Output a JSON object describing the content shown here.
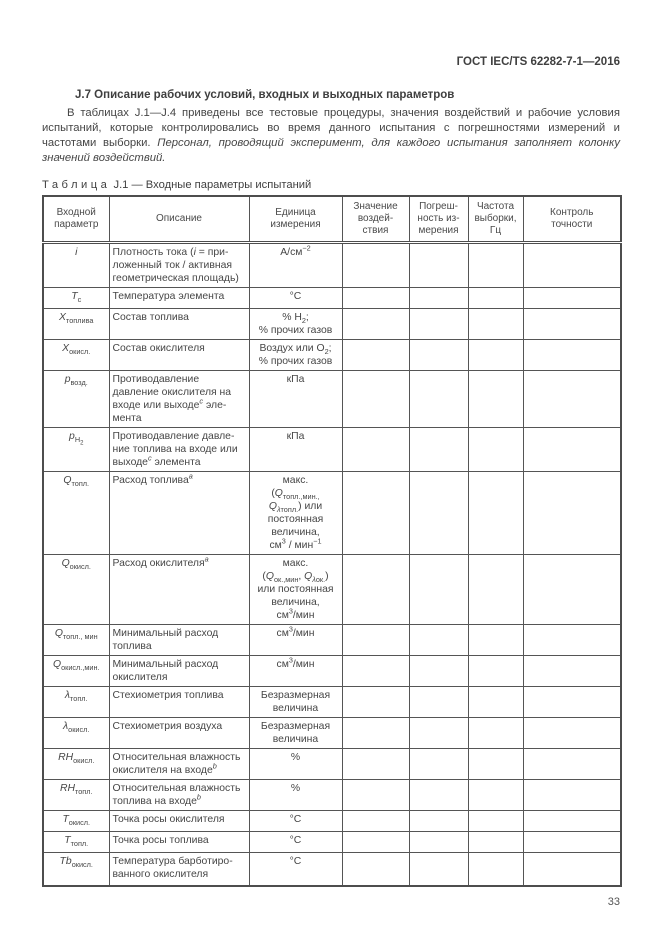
{
  "page": {
    "header_right": "ГОСТ IEC/TS 62282-7-1—2016",
    "section_title": "J.7 Описание рабочих условий, входных и выходных параметров",
    "intro_text": "В таблицах J.1—J.4 приведены все тестовые процедуры, значения воздействий и рабочие условия испытаний, которые контролировались во время данного испытания с погрешностями измерений и частотами выборки. ",
    "intro_italic": "Персонал, проводящий эксперимент, для каждого испытания заполняет колонку значений воздействий.",
    "caption_word": "Таблица",
    "caption_rest": " J.1 — Входные параметры испытаний",
    "page_number": "33"
  },
  "table": {
    "columns": [
      {
        "key": "param",
        "label": "Входной<br>параметр",
        "width": 66
      },
      {
        "key": "desc",
        "label": "Описание",
        "width": 140
      },
      {
        "key": "unit",
        "label": "Единица<br>измерения",
        "width": 93
      },
      {
        "key": "value",
        "label": "Значение<br>воздей-<br>ствия",
        "width": 67
      },
      {
        "key": "error",
        "label": "Погреш-<br>ность из-<br>мерения",
        "width": 59
      },
      {
        "key": "freq",
        "label": "Частота<br>выборки,<br>Гц",
        "width": 55
      },
      {
        "key": "control",
        "label": "Контроль<br>точности",
        "width": 98
      }
    ],
    "empty_cell_keys": [
      "value",
      "error",
      "freq",
      "control"
    ],
    "rows": [
      {
        "h": 45,
        "param": "<i>i</i>",
        "desc": "Плотность тока (<i>i</i> = при­ложенный ток / активная геометрическая площадь)",
        "unit": "А/см<sup>−2</sup>"
      },
      {
        "h": 21,
        "param": "<i>T</i><sub>с</sub>",
        "desc": "Температура элемента",
        "unit": "°С"
      },
      {
        "h": 31,
        "param": "<i>X</i><sub>топлива</sub>",
        "desc": "Состав топлива",
        "unit": "% H<sub>2</sub>;<br>% прочих газов"
      },
      {
        "h": 31,
        "param": "<i>X</i><sub>окисл.</sub>",
        "desc": "Состав окислителя",
        "unit": "Воздух или O<sub>2</sub>;<br>% прочих газов"
      },
      {
        "h": 55,
        "param": "<i>p</i><sub>возд.</sub>",
        "desc": "Противодавление давление окислителя на входе или выходе<sup><i>c</i></sup> эле­мента",
        "unit": "кПа"
      },
      {
        "h": 39,
        "param": "<i>p</i><sub>H<sub>2</sub></sub>",
        "desc": "Противодавление давле­ние топлива на входе или выходе<sup><i>c</i></sup> элемента",
        "unit": "кПа"
      },
      {
        "h": 74,
        "param": "<i>Q</i><sub>топл.</sub>",
        "desc": "Расход топлива<sup><i>a</i></sup>",
        "unit": "макс.<br>(<i>Q</i><sub>топл.,мин.,</sub><br><i>Q</i><sub><i>λ</i>топл.</sub>) или<br>постоянная<br>величина,<br>см<sup>3</sup> / мин<sup>−1</sup>"
      },
      {
        "h": 65,
        "param": "<i>Q</i><sub>окисл.</sub>",
        "desc": "Расход окислителя<sup><i>a</i></sup>",
        "unit": "макс.<br>(<i>Q</i><sub>ок.,мин</sub>, <i>Q</i><sub><i>λ</i>ок.</sub>)<br>или постоянная<br>величина,<br>см<sup>3</sup>/мин"
      },
      {
        "h": 31,
        "param": "<i>Q</i><sub>топл., мин</sub>",
        "desc": "Минимальный расход топлива",
        "unit": "см<sup>3</sup>/мин"
      },
      {
        "h": 31,
        "param": "<i>Q</i><sub>окисл.,мин.</sub>",
        "desc": "Минимальный расход окислителя",
        "unit": "см<sup>3</sup>/мин"
      },
      {
        "h": 31,
        "param": "<i>λ</i><sub>топл.</sub>",
        "desc": "Стехиометрия топлива",
        "unit": "Безразмерная величина"
      },
      {
        "h": 31,
        "param": "<i>λ</i><sub>окисл.</sub>",
        "desc": "Стехиометрия воздуха",
        "unit": "Безразмерная величина"
      },
      {
        "h": 31,
        "param": "<i>RH</i><sub>окисл.</sub>",
        "desc": "Относительная влажность окислителя на входе<sup><i>b</i></sup>",
        "unit": "%"
      },
      {
        "h": 31,
        "param": "<i>RH</i><sub>топл.</sub>",
        "desc": "Относительная влажность топлива на входе<sup><i>b</i></sup>",
        "unit": "%"
      },
      {
        "h": 21,
        "param": "<i>T</i><sub>окисл.</sub>",
        "desc": "Точка росы окислителя",
        "unit": "°С"
      },
      {
        "h": 21,
        "param": "<i>T</i><sub>топл.</sub>",
        "desc": "Точка росы топлива",
        "unit": "°С"
      },
      {
        "h": 34,
        "param": "<i>Tb</i><sub>окисл.</sub>",
        "desc": "Температура барботиро­ванного окислителя",
        "unit": "°С"
      }
    ]
  }
}
